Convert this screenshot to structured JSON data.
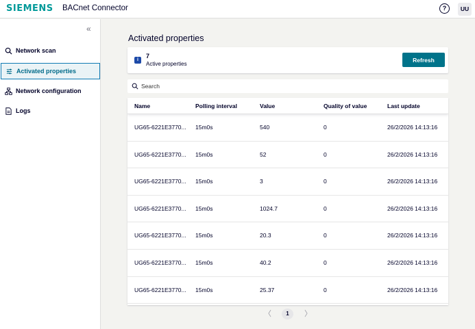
{
  "header": {
    "logo": "SIEMENS",
    "app_title": "BACnet Connector",
    "help_glyph": "?",
    "avatar_initials": "UU"
  },
  "sidebar": {
    "collapse_glyph": "«",
    "items": [
      {
        "label": "Network scan",
        "icon": "search-icon",
        "active": false
      },
      {
        "label": "Activated properties",
        "icon": "tune-icon",
        "active": true
      },
      {
        "label": "Network configuration",
        "icon": "network-icon",
        "active": false
      },
      {
        "label": "Logs",
        "icon": "document-icon",
        "active": false
      }
    ]
  },
  "main": {
    "title": "Activated properties",
    "info": {
      "badge": "i",
      "count": "7",
      "label": "Active properties",
      "refresh_label": "Refresh"
    },
    "search": {
      "placeholder": "Search",
      "value": ""
    },
    "table": {
      "columns": [
        "Name",
        "Polling interval",
        "Value",
        "Quality of value",
        "Last update"
      ],
      "rows": [
        [
          "UG65-6221E3770...",
          "15m0s",
          "540",
          "0",
          "26/2/2026 14:13:16"
        ],
        [
          "UG65-6221E3770...",
          "15m0s",
          "52",
          "0",
          "26/2/2026 14:13:16"
        ],
        [
          "UG65-6221E3770...",
          "15m0s",
          "3",
          "0",
          "26/2/2026 14:13:16"
        ],
        [
          "UG65-6221E3770...",
          "15m0s",
          "1024.7",
          "0",
          "26/2/2026 14:13:16"
        ],
        [
          "UG65-6221E3770...",
          "15m0s",
          "20.3",
          "0",
          "26/2/2026 14:13:16"
        ],
        [
          "UG65-6221E3770...",
          "15m0s",
          "40.2",
          "0",
          "26/2/2026 14:13:16"
        ],
        [
          "UG65-6221E3770...",
          "15m0s",
          "25.37",
          "0",
          "26/2/2026 14:13:16"
        ]
      ]
    },
    "pagination": {
      "prev": "〈",
      "current_page": "1",
      "next": "〉"
    }
  },
  "colors": {
    "brand": "#009999",
    "primary_button": "#00738a",
    "active_nav_border": "#0e7ab3",
    "info_badge": "#1d4aa8"
  }
}
